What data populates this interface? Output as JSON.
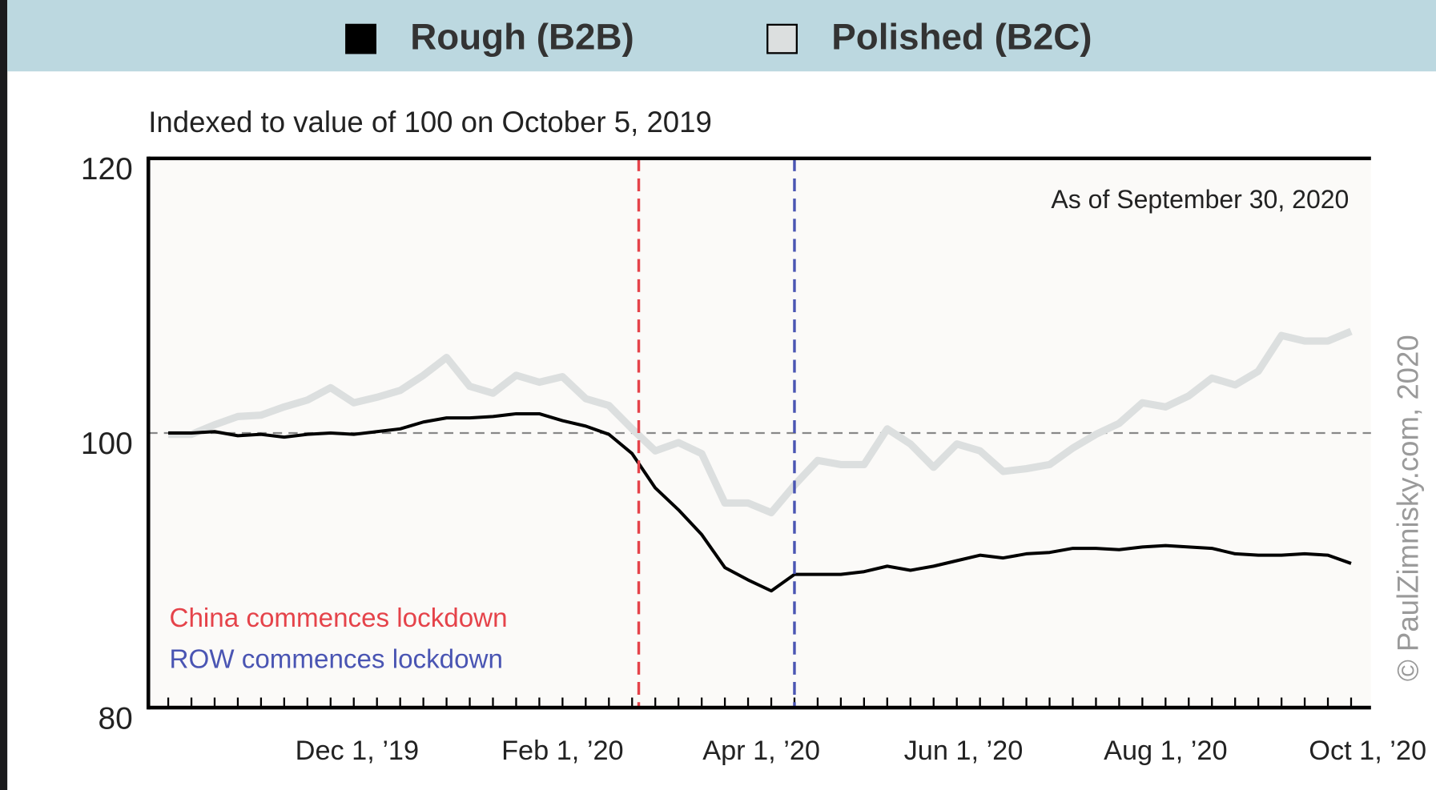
{
  "chart_data": {
    "type": "line",
    "subtitle": "Indexed to value of 100 on October 5, 2019",
    "annotation": "As of September 30, 2020",
    "credit": "© PaulZimnisky.com, 2020",
    "x": [
      "2019-10-05",
      "2019-10-12",
      "2019-10-19",
      "2019-10-26",
      "2019-11-02",
      "2019-11-09",
      "2019-11-16",
      "2019-11-23",
      "2019-11-30",
      "2019-12-07",
      "2019-12-14",
      "2019-12-21",
      "2019-12-28",
      "2020-01-04",
      "2020-01-11",
      "2020-01-18",
      "2020-01-25",
      "2020-02-01",
      "2020-02-08",
      "2020-02-15",
      "2020-02-22",
      "2020-02-29",
      "2020-03-07",
      "2020-03-14",
      "2020-03-21",
      "2020-03-28",
      "2020-04-04",
      "2020-04-11",
      "2020-04-18",
      "2020-04-25",
      "2020-05-02",
      "2020-05-09",
      "2020-05-16",
      "2020-05-23",
      "2020-05-30",
      "2020-06-06",
      "2020-06-13",
      "2020-06-20",
      "2020-06-27",
      "2020-07-04",
      "2020-07-11",
      "2020-07-18",
      "2020-07-25",
      "2020-08-01",
      "2020-08-08",
      "2020-08-15",
      "2020-08-22",
      "2020-08-29",
      "2020-09-05",
      "2020-09-12",
      "2020-09-19",
      "2020-09-26"
    ],
    "series": [
      {
        "name": "Polished (B2C)",
        "color": "#dcdfdf",
        "values": [
          99.9,
          99.9,
          100.6,
          101.2,
          101.3,
          101.9,
          102.4,
          103.3,
          102.2,
          102.6,
          103.1,
          104.2,
          105.5,
          103.4,
          102.9,
          104.2,
          103.7,
          104.1,
          102.5,
          102.0,
          100.3,
          98.7,
          99.3,
          98.5,
          94.9,
          94.9,
          94.2,
          96.2,
          98.0,
          97.7,
          97.7,
          100.3,
          99.2,
          97.5,
          99.2,
          98.7,
          97.2,
          97.4,
          97.7,
          98.9,
          99.9,
          100.7,
          102.2,
          101.9,
          102.7,
          104.0,
          103.5,
          104.5,
          107.1,
          106.7,
          106.7,
          107.4
        ]
      },
      {
        "name": "Rough (B2B)",
        "color": "#000000",
        "values": [
          100.0,
          100.0,
          100.1,
          99.8,
          99.9,
          99.7,
          99.9,
          100.0,
          99.9,
          100.1,
          100.3,
          100.8,
          101.1,
          101.1,
          101.2,
          101.4,
          101.4,
          100.9,
          100.5,
          99.9,
          98.5,
          96.0,
          94.4,
          92.6,
          90.2,
          89.3,
          88.5,
          89.7,
          89.7,
          89.7,
          89.9,
          90.3,
          90.0,
          90.3,
          90.7,
          91.1,
          90.9,
          91.2,
          91.3,
          91.6,
          91.6,
          91.5,
          91.7,
          91.8,
          91.7,
          91.6,
          91.2,
          91.1,
          91.1,
          91.2,
          91.1,
          90.5
        ]
      }
    ],
    "legend_order": [
      1,
      0
    ],
    "xlim": [
      "2019-09-29",
      "2020-10-02"
    ],
    "xticks": [
      {
        "value": "2019-12-01",
        "label": "Dec 1, ’19"
      },
      {
        "value": "2020-02-01",
        "label": "Feb 1, ’20"
      },
      {
        "value": "2020-04-01",
        "label": "Apr 1, ’20"
      },
      {
        "value": "2020-06-01",
        "label": "Jun 1, ’20"
      },
      {
        "value": "2020-08-01",
        "label": "Aug 1, ’20"
      },
      {
        "value": "2020-10-01",
        "label": "Oct 1, ’20"
      }
    ],
    "ylim": [
      80,
      120
    ],
    "yticks": [
      80,
      100,
      120
    ],
    "reference_line": 100,
    "events": [
      {
        "label": "China commences lockdown",
        "x": "2020-02-24",
        "color": "#e5434a"
      },
      {
        "label": "ROW commences lockdown",
        "x": "2020-04-11",
        "color": "#4a55b3"
      }
    ]
  }
}
